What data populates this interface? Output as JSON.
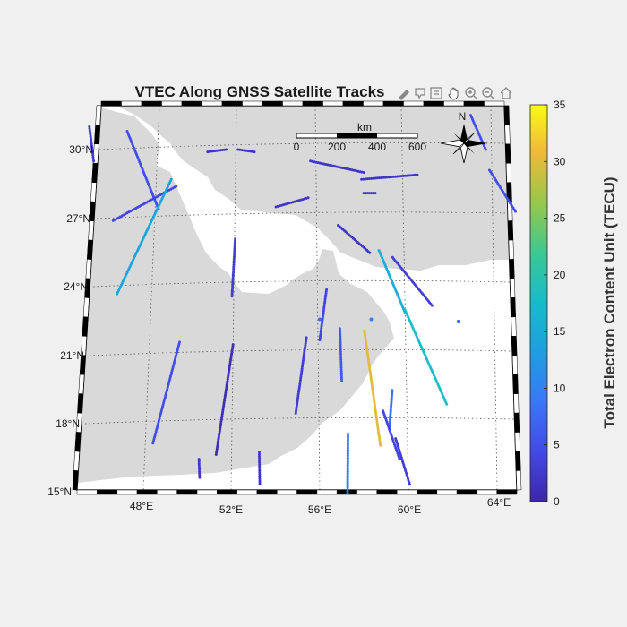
{
  "title": "VTEC Along GNSS Satellite Tracks",
  "lat_labels": [
    "30°N",
    "27°N",
    "24°N",
    "21°N",
    "18°N",
    "15°N"
  ],
  "lon_labels": [
    "48°E",
    "52°E",
    "56°E",
    "60°E",
    "64°E"
  ],
  "scalebar": {
    "unit": "km",
    "ticks": [
      "0",
      "200",
      "400",
      "600"
    ]
  },
  "north_label": "N",
  "colorbar": {
    "label": "Total Electron Content Unit (TECU)",
    "ticks": [
      "0",
      "5",
      "10",
      "15",
      "20",
      "25",
      "30",
      "35"
    ],
    "min": 0,
    "max": 35,
    "colormap": "parula"
  },
  "toolbar": [
    "brush-icon",
    "data-tips-icon",
    "export-icon",
    "pan-icon",
    "zoom-in-icon",
    "zoom-out-icon",
    "restore-view-icon"
  ],
  "colors": {
    "land": "#d9d9d9",
    "sea": "#ffffff",
    "background": "#f0f0f0"
  },
  "chart_data": {
    "type": "scatter",
    "title": "VTEC Along GNSS Satellite Tracks",
    "colorbar_label": "Total Electron Content Unit (TECU)",
    "clim": [
      0,
      35
    ],
    "xlim": [
      45,
      65
    ],
    "ylim": [
      15,
      32
    ],
    "grid": true,
    "tracks": [
      {
        "lon": [
          46.2,
          46.3
        ],
        "lat": [
          31.0,
          29.5
        ],
        "tec": 3
      },
      {
        "lon": [
          47.8,
          49.0
        ],
        "lat": [
          30.8,
          27.4
        ],
        "tec": 5
      },
      {
        "lon": [
          47.0,
          49.8
        ],
        "lat": [
          26.9,
          28.4
        ],
        "tec": 4
      },
      {
        "lon": [
          47.0,
          49.6
        ],
        "lat": [
          23.7,
          28.7
        ],
        "tec": 14
      },
      {
        "lon": [
          51.2,
          52.0
        ],
        "lat": [
          29.9,
          30.0
        ],
        "tec": 2
      },
      {
        "lon": [
          52.5,
          53.2
        ],
        "lat": [
          30.0,
          29.9
        ],
        "tec": 2
      },
      {
        "lon": [
          52.3,
          52.1
        ],
        "lat": [
          26.1,
          23.6
        ],
        "tec": 3
      },
      {
        "lon": [
          54.1,
          55.5
        ],
        "lat": [
          27.5,
          27.9
        ],
        "tec": 2
      },
      {
        "lon": [
          55.6,
          57.9
        ],
        "lat": [
          29.5,
          29.0
        ],
        "tec": 2
      },
      {
        "lon": [
          57.8,
          60.2
        ],
        "lat": [
          28.7,
          28.9
        ],
        "tec": 2
      },
      {
        "lon": [
          57.9,
          58.4
        ],
        "lat": [
          28.1,
          28.1
        ],
        "tec": 2
      },
      {
        "lon": [
          56.8,
          58.2
        ],
        "lat": [
          26.7,
          25.5
        ],
        "tec": 2
      },
      {
        "lon": [
          58.6,
          59.8
        ],
        "lat": [
          25.6,
          22.9
        ],
        "tec": 15
      },
      {
        "lon": [
          59.2,
          61.0
        ],
        "lat": [
          25.3,
          23.2
        ],
        "tec": 3
      },
      {
        "lon": [
          59.8,
          61.8
        ],
        "lat": [
          23.0,
          18.9
        ],
        "tec": 18
      },
      {
        "lon": [
          63.3,
          64.5
        ],
        "lat": [
          29.1,
          27.3
        ],
        "tec": 5
      },
      {
        "lon": [
          62.4,
          63.1
        ],
        "lat": [
          31.5,
          30.0
        ],
        "tec": 5
      },
      {
        "lon": [
          56.3,
          56.0
        ],
        "lat": [
          23.9,
          21.7
        ],
        "tec": 4
      },
      {
        "lon": [
          56.9,
          57.0
        ],
        "lat": [
          22.2,
          19.9
        ],
        "tec": 6
      },
      {
        "lon": [
          55.4,
          54.9
        ],
        "lat": [
          21.8,
          18.5
        ],
        "tec": 3
      },
      {
        "lon": [
          58.0,
          58.8
        ],
        "lat": [
          22.1,
          17.1
        ],
        "tec": 30
      },
      {
        "lon": [
          59.3,
          59.2
        ],
        "lat": [
          19.5,
          17.8
        ],
        "tec": 8
      },
      {
        "lon": [
          58.9,
          59.7
        ],
        "lat": [
          18.6,
          16.5
        ],
        "tec": 4
      },
      {
        "lon": [
          59.5,
          60.2
        ],
        "lat": [
          17.4,
          15.4
        ],
        "tec": 3
      },
      {
        "lon": [
          57.3,
          57.3
        ],
        "lat": [
          17.6,
          15.0
        ],
        "tec": 9
      },
      {
        "lon": [
          52.1,
          51.2
        ],
        "lat": [
          21.5,
          16.7
        ],
        "tec": 1
      },
      {
        "lon": [
          49.7,
          48.3
        ],
        "lat": [
          21.6,
          17.2
        ],
        "tec": 5
      },
      {
        "lon": [
          50.4,
          50.4
        ],
        "lat": [
          16.5,
          15.7
        ],
        "tec": 2
      },
      {
        "lon": [
          53.2,
          53.2
        ],
        "lat": [
          16.8,
          15.4
        ],
        "tec": 2
      },
      {
        "lon": [
          56.0,
          56.0
        ],
        "lat": [
          22.6,
          22.6
        ],
        "tec": 8
      },
      {
        "lon": [
          58.3,
          58.3
        ],
        "lat": [
          22.6,
          22.6
        ],
        "tec": 10
      },
      {
        "lon": [
          62.2,
          62.2
        ],
        "lat": [
          22.5,
          22.5
        ],
        "tec": 7
      }
    ]
  }
}
